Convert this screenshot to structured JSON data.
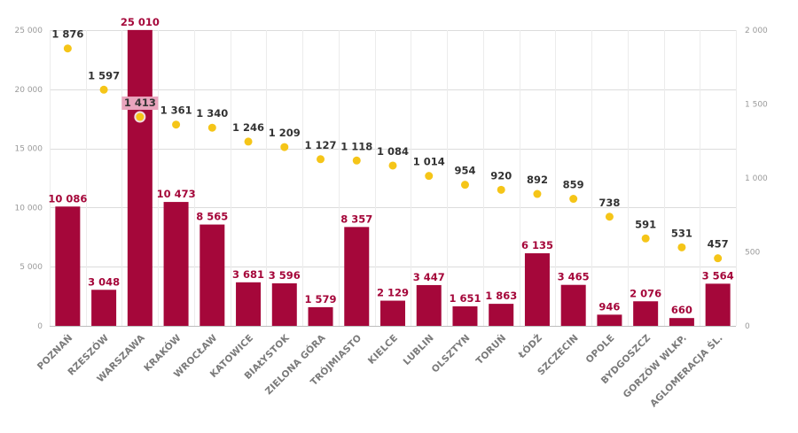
{
  "chart_data": {
    "type": "bar",
    "title": "",
    "xlabel": "",
    "ylabel": "",
    "categories": [
      "POZNAŃ",
      "RZESZÓW",
      "WARSZAWA",
      "KRAKÓW",
      "WROCŁAW",
      "KATOWICE",
      "BIAŁYSTOK",
      "ZIELONA GÓRA",
      "TRÓJMIASTO",
      "KIELCE",
      "LUBLIN",
      "OLSZTYN",
      "TORUŃ",
      "ŁÓDŹ",
      "SZCZECIN",
      "OPOLE",
      "BYDGOSZCZ",
      "GORZÓW  WLKP.",
      "AGLOMERACJA ŚL."
    ],
    "series": [
      {
        "name": "bars",
        "type": "bar",
        "axis": "left",
        "color": "#a5073a",
        "values": [
          10086,
          3048,
          25010,
          10473,
          8565,
          3681,
          3596,
          1579,
          8357,
          2129,
          3447,
          1651,
          1863,
          6135,
          3465,
          946,
          2076,
          660,
          3564
        ],
        "labels": [
          "10 086",
          "3 048",
          "25 010",
          "10 473",
          "8 565",
          "3 681",
          "3 596",
          "1 579",
          "8 357",
          "2 129",
          "3 447",
          "1 651",
          "1 863",
          "6 135",
          "3 465",
          "946",
          "2 076",
          "660",
          "3 564"
        ]
      },
      {
        "name": "points",
        "type": "scatter",
        "axis": "right",
        "color": "#f5c518",
        "values": [
          1876,
          1597,
          1413,
          1361,
          1340,
          1246,
          1209,
          1127,
          1118,
          1084,
          1014,
          954,
          920,
          892,
          859,
          738,
          591,
          531,
          457
        ],
        "labels": [
          "1 876",
          "1 597",
          "1 413",
          "1 361",
          "1 340",
          "1 246",
          "1 209",
          "1 127",
          "1 118",
          "1 084",
          "1 014",
          "954",
          "920",
          "892",
          "859",
          "738",
          "591",
          "531",
          "457"
        ]
      }
    ],
    "y_left": {
      "range": [
        0,
        25000
      ],
      "ticks": [
        0,
        5000,
        10000,
        15000,
        20000,
        25000
      ],
      "tick_labels": [
        "0",
        "5 000",
        "10 000",
        "15 000",
        "20 000",
        "25 000"
      ]
    },
    "y_right": {
      "range": [
        0,
        2000
      ],
      "ticks": [
        0,
        500,
        1000,
        1500,
        2000
      ],
      "tick_labels": [
        "0",
        "500",
        "1 000",
        "1 500",
        "2 000"
      ]
    },
    "grid": true,
    "legend": "none",
    "highlight_label_bg": "#e9a4bd",
    "grid_color": "#dcdcdc"
  }
}
